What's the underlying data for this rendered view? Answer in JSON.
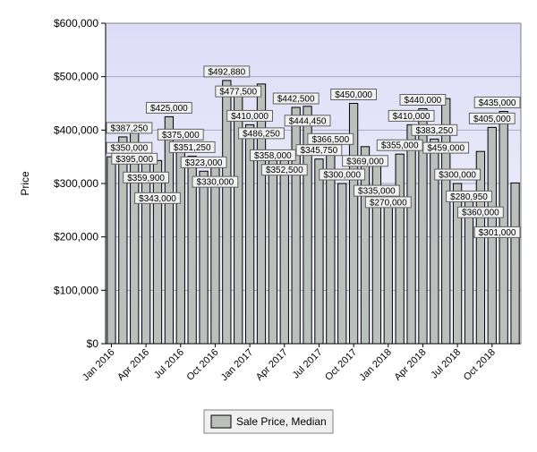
{
  "chart_data": {
    "type": "bar",
    "xlabel": "",
    "ylabel": "Price",
    "ylim": [
      0,
      600000
    ],
    "y_ticks": [
      0,
      100000,
      200000,
      300000,
      400000,
      500000,
      600000
    ],
    "y_tick_labels": [
      "$0",
      "$100,000",
      "$200,000",
      "$300,000",
      "$400,000",
      "$500,000",
      "$600,000"
    ],
    "x_tick_labels": [
      "Jan 2016",
      "Apr 2016",
      "Jul 2016",
      "Oct 2016",
      "Jan 2017",
      "Apr 2017",
      "Jul 2017",
      "Oct 2017",
      "Jan 2018",
      "Apr 2018",
      "Jul 2018",
      "Oct 2018"
    ],
    "x_tick_positions": [
      0,
      3,
      6,
      9,
      12,
      15,
      18,
      21,
      24,
      27,
      30,
      33
    ],
    "grid": true,
    "legend_position": "bottom-center",
    "colors": {
      "plot_background": "#e6e6f8",
      "bar_fill": "#bcc0bc",
      "bar_stroke": "#000000",
      "label_fill": "#f2f2f2"
    },
    "series": [
      {
        "name": "Sale Price, Median",
        "values": [
          350000,
          387250,
          395000,
          359900,
          343000,
          425000,
          375000,
          351250,
          323000,
          330000,
          492880,
          477500,
          410000,
          486250,
          358000,
          352500,
          442500,
          444450,
          345750,
          366500,
          300000,
          450000,
          369000,
          335000,
          270000,
          355000,
          410000,
          440000,
          383250,
          459000,
          300000,
          280950,
          360000,
          405000,
          435000,
          301000
        ],
        "labels": [
          "$350,000",
          "$387,250",
          "$395,000",
          "$359,900",
          "$343,000",
          "$425,000",
          "$375,000",
          "$351,250",
          "$323,000",
          "$330,000",
          "$492,880",
          "$477,500",
          "$410,000",
          "$486,250",
          "$358,000",
          "$352,500",
          "$442,500",
          "$444,450",
          "$345,750",
          "$366,500",
          "$300,000",
          "$450,000",
          "$369,000",
          "$335,000",
          "$270,000",
          "$355,000",
          "$410,000",
          "$440,000",
          "$383,250",
          "$459,000",
          "$300,000",
          "$280,950",
          "$360,000",
          "$405,000",
          "$435,000",
          "$301,000"
        ]
      }
    ]
  }
}
